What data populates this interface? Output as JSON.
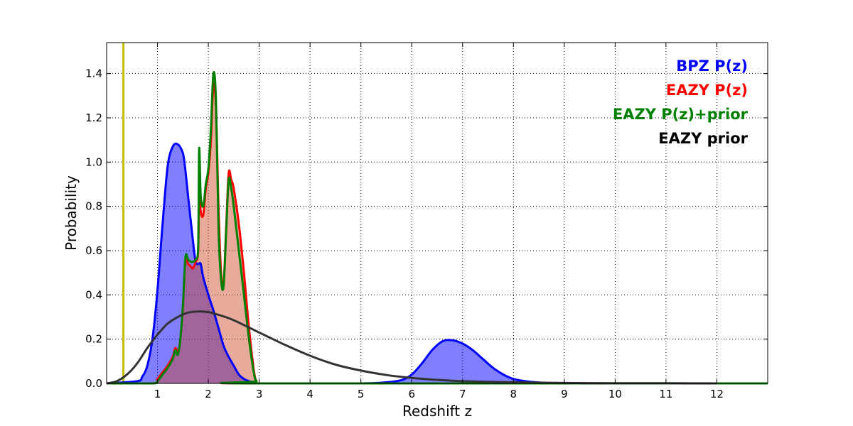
{
  "chart_data": {
    "type": "area",
    "xlabel": "Redshift z",
    "ylabel": "Probability",
    "xlim": [
      0,
      13
    ],
    "ylim": [
      0,
      1.54
    ],
    "grid": true,
    "legend_position": "top-right",
    "x_ticks": [
      1,
      2,
      3,
      4,
      5,
      6,
      7,
      8,
      9,
      10,
      11,
      12
    ],
    "x_tick_labels": [
      "1",
      "2",
      "3",
      "4",
      "5",
      "6",
      "7",
      "8",
      "9",
      "10",
      "11",
      "12"
    ],
    "y_ticks": [
      0.0,
      0.2,
      0.4,
      0.6,
      0.8,
      1.0,
      1.2,
      1.4
    ],
    "y_tick_labels": [
      "0.0",
      "0.2",
      "0.4",
      "0.6",
      "0.8",
      "1.0",
      "1.2",
      "1.4"
    ],
    "vertical_line": {
      "x": 0.33,
      "color": "#bfbf00"
    },
    "series": [
      {
        "name": "BPZ P(z)",
        "color": "#0000ff",
        "fill": "#0000ff",
        "fill_opacity": 0.5,
        "x": [
          0,
          0.6,
          0.7,
          0.8,
          0.9,
          1.0,
          1.1,
          1.2,
          1.3,
          1.4,
          1.5,
          1.55,
          1.6,
          1.7,
          1.75,
          1.8,
          1.85,
          1.9,
          2.0,
          2.1,
          2.2,
          2.3,
          2.4,
          2.5,
          2.6,
          2.7,
          2.8,
          2.9,
          3.0,
          5.0,
          5.5,
          5.8,
          6.0,
          6.2,
          6.4,
          6.6,
          6.8,
          7.0,
          7.2,
          7.4,
          7.6,
          7.8,
          8.0,
          8.3,
          8.6,
          9.0,
          13
        ],
        "values": [
          0,
          0.01,
          0.03,
          0.08,
          0.2,
          0.42,
          0.72,
          0.98,
          1.07,
          1.08,
          1.04,
          0.96,
          0.85,
          0.64,
          0.55,
          0.54,
          0.54,
          0.48,
          0.4,
          0.33,
          0.25,
          0.17,
          0.12,
          0.08,
          0.04,
          0.02,
          0.01,
          0.005,
          0.0,
          0.0,
          0.005,
          0.015,
          0.04,
          0.09,
          0.15,
          0.19,
          0.195,
          0.18,
          0.15,
          0.11,
          0.07,
          0.04,
          0.02,
          0.008,
          0.003,
          0.0,
          0.0
        ]
      },
      {
        "name": "EAZY P(z)",
        "color": "#ff0000",
        "fill": "#cc4422",
        "fill_opacity": 0.45,
        "x": [
          0,
          0.9,
          1.0,
          1.1,
          1.2,
          1.3,
          1.35,
          1.4,
          1.45,
          1.5,
          1.55,
          1.6,
          1.65,
          1.7,
          1.75,
          1.8,
          1.82,
          1.85,
          1.9,
          1.95,
          2.0,
          2.05,
          2.1,
          2.15,
          2.2,
          2.25,
          2.3,
          2.35,
          2.4,
          2.45,
          2.5,
          2.6,
          2.7,
          2.8,
          2.9,
          2.95,
          3.0,
          13
        ],
        "values": [
          0,
          0.0,
          0.02,
          0.05,
          0.08,
          0.12,
          0.16,
          0.14,
          0.2,
          0.35,
          0.56,
          0.54,
          0.53,
          0.52,
          0.55,
          0.6,
          0.9,
          0.78,
          0.76,
          0.88,
          0.95,
          1.1,
          1.35,
          1.25,
          0.8,
          0.5,
          0.45,
          0.7,
          0.95,
          0.92,
          0.88,
          0.72,
          0.5,
          0.25,
          0.05,
          0.01,
          0.0,
          0.0
        ]
      },
      {
        "name": "EAZY P(z)+prior",
        "color": "#008000",
        "fill": null,
        "x": [
          0,
          0.9,
          1.0,
          1.1,
          1.2,
          1.3,
          1.35,
          1.4,
          1.45,
          1.5,
          1.55,
          1.6,
          1.65,
          1.7,
          1.75,
          1.8,
          1.82,
          1.85,
          1.9,
          1.95,
          2.0,
          2.05,
          2.1,
          2.15,
          2.2,
          2.25,
          2.3,
          2.35,
          2.4,
          2.45,
          2.5,
          2.6,
          2.7,
          2.8,
          2.9,
          2.95,
          3.0,
          13
        ],
        "values": [
          0,
          0.0,
          0.01,
          0.04,
          0.07,
          0.11,
          0.15,
          0.13,
          0.2,
          0.35,
          0.57,
          0.56,
          0.55,
          0.55,
          0.56,
          0.62,
          1.06,
          0.85,
          0.8,
          0.9,
          0.97,
          1.15,
          1.4,
          1.28,
          0.7,
          0.47,
          0.44,
          0.68,
          0.92,
          0.88,
          0.8,
          0.6,
          0.4,
          0.2,
          0.04,
          0.01,
          0.0,
          0.0
        ]
      },
      {
        "name": "EAZY prior",
        "color": "#333333",
        "fill": null,
        "x": [
          0,
          0.2,
          0.4,
          0.6,
          0.8,
          1.0,
          1.2,
          1.4,
          1.6,
          1.8,
          2.0,
          2.2,
          2.4,
          2.6,
          3.0,
          3.5,
          4.0,
          4.5,
          5.0,
          5.5,
          6.0,
          6.5,
          7.0,
          8.0,
          9.0,
          10.0,
          11.0,
          12.0
        ],
        "values": [
          0.0,
          0.01,
          0.04,
          0.09,
          0.16,
          0.22,
          0.27,
          0.3,
          0.32,
          0.325,
          0.322,
          0.31,
          0.295,
          0.275,
          0.23,
          0.175,
          0.125,
          0.085,
          0.058,
          0.038,
          0.025,
          0.016,
          0.01,
          0.005,
          0.002,
          0.001,
          0.0005,
          0.0
        ]
      }
    ]
  }
}
